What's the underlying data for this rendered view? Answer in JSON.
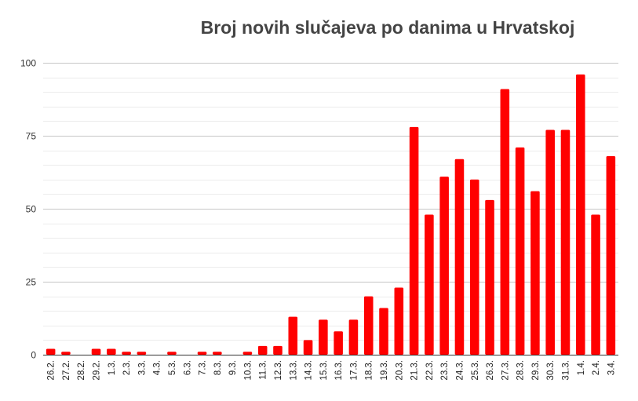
{
  "chart_data": {
    "type": "bar",
    "title": "Broj novih slučajeva po danima u Hrvatskoj",
    "xlabel": "",
    "ylabel": "",
    "ylim": [
      0,
      100
    ],
    "yticks": [
      0,
      25,
      50,
      75,
      100
    ],
    "grid": true,
    "legend": "none",
    "bar_color": "#ff0000",
    "categories": [
      "26.2.",
      "27.2.",
      "28.2.",
      "29.2.",
      "1.3.",
      "2.3.",
      "3.3.",
      "4.3.",
      "5.3.",
      "6.3.",
      "7.3.",
      "8.3.",
      "9.3.",
      "10.3.",
      "11.3.",
      "12.3.",
      "13.3.",
      "14.3.",
      "15.3.",
      "16.3.",
      "17.3.",
      "18.3.",
      "19.3.",
      "20.3.",
      "21.3.",
      "22.3.",
      "23.3.",
      "24.3.",
      "25.3.",
      "26.3.",
      "27.3.",
      "28.3.",
      "29.3.",
      "30.3.",
      "31.3.",
      "1.4.",
      "2.4.",
      "3.4."
    ],
    "values": [
      2,
      1,
      0,
      2,
      2,
      1,
      1,
      0,
      1,
      0,
      1,
      1,
      0,
      1,
      3,
      3,
      13,
      5,
      12,
      8,
      12,
      20,
      16,
      23,
      78,
      48,
      61,
      67,
      60,
      53,
      91,
      71,
      56,
      77,
      77,
      96,
      48,
      68
    ]
  }
}
